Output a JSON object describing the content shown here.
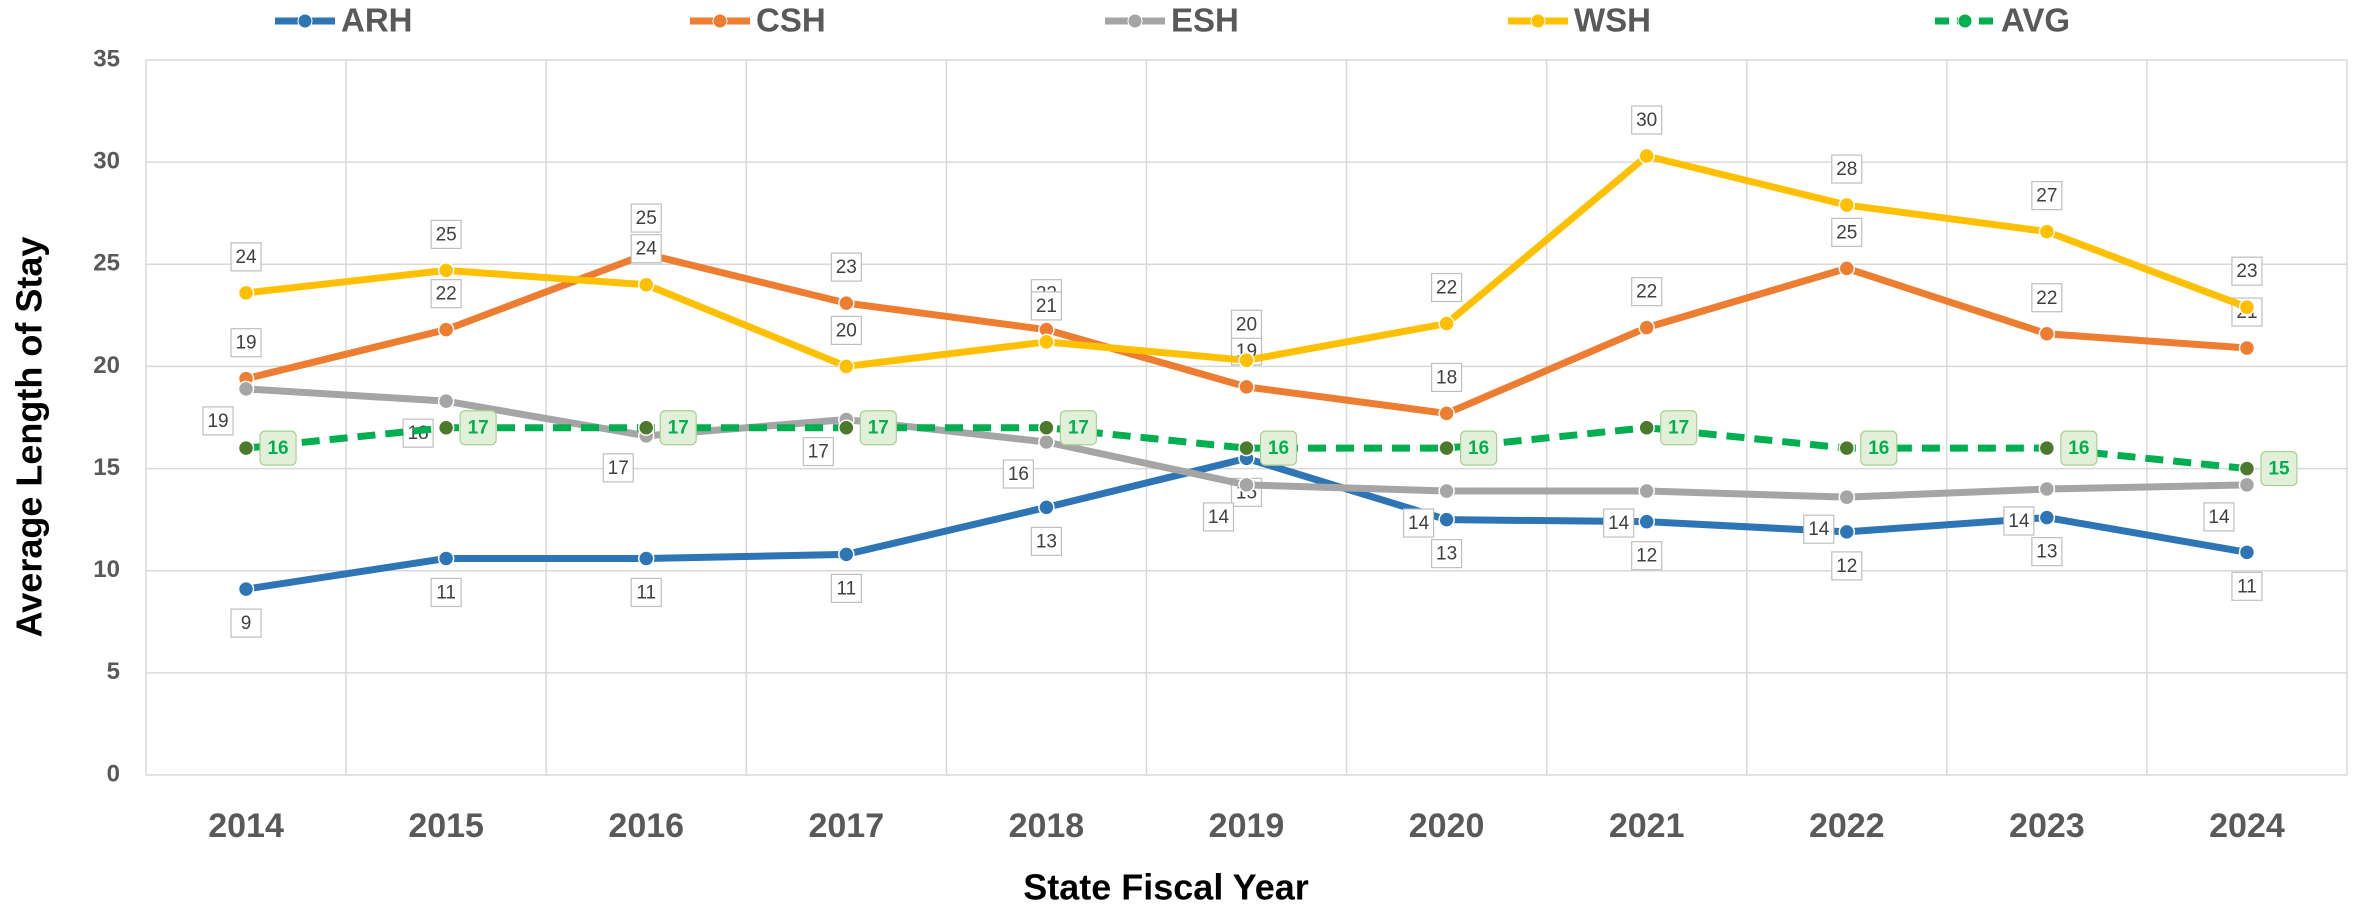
{
  "chart_data": {
    "type": "line",
    "xlabel": "State Fiscal Year",
    "ylabel": "Average Length of Stay",
    "categories": [
      "2014",
      "2015",
      "2016",
      "2017",
      "2018",
      "2019",
      "2020",
      "2021",
      "2022",
      "2023",
      "2024"
    ],
    "ylim": [
      0,
      35
    ],
    "yticks": [
      0,
      5,
      10,
      15,
      20,
      25,
      30,
      35
    ],
    "grid": true,
    "legend": "top",
    "series": [
      {
        "name": "ARH",
        "color": "#2e75b6",
        "values": [
          9.1,
          10.6,
          10.6,
          10.8,
          13.1,
          15.5,
          12.5,
          12.4,
          11.9,
          12.6,
          10.9
        ],
        "value_labels": [
          "9",
          "11",
          "11",
          "11",
          "13",
          "15",
          "13",
          "12",
          "12",
          "13",
          "11"
        ]
      },
      {
        "name": "CSH",
        "color": "#ed7d31",
        "values": [
          19.4,
          21.8,
          25.5,
          23.1,
          21.8,
          19.0,
          17.7,
          21.9,
          24.8,
          21.6,
          20.9
        ],
        "value_labels": [
          "19",
          "22",
          "25",
          "23",
          "22",
          "19",
          "18",
          "22",
          "25",
          "22",
          "21"
        ]
      },
      {
        "name": "ESH",
        "color": "#a5a5a5",
        "values": [
          18.9,
          18.3,
          16.6,
          17.4,
          16.3,
          14.2,
          13.9,
          13.9,
          13.6,
          14.0,
          14.2
        ],
        "value_labels": [
          "19",
          "18",
          "17",
          "17",
          "16",
          "14",
          "14",
          "14",
          "14",
          "14",
          "14"
        ]
      },
      {
        "name": "WSH",
        "color": "#ffc000",
        "values": [
          23.6,
          24.7,
          24.0,
          20.0,
          21.2,
          20.3,
          22.1,
          30.3,
          27.9,
          26.6,
          22.9
        ],
        "value_labels": [
          "24",
          "25",
          "24",
          "20",
          "21",
          "20",
          "22",
          "30",
          "28",
          "27",
          "23"
        ]
      },
      {
        "name": "AVG",
        "color": "#00b050",
        "dashed": true,
        "values": [
          16,
          17,
          17,
          17,
          17,
          16,
          16,
          17,
          16,
          16,
          15
        ]
      }
    ]
  }
}
